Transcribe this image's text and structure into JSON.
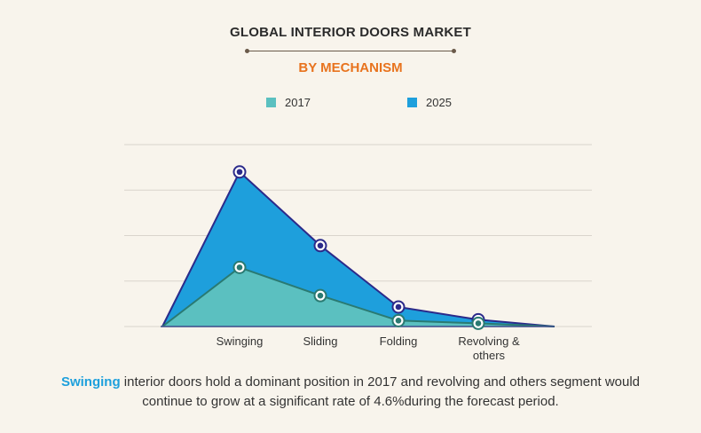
{
  "title": "GLOBAL INTERIOR DOORS MARKET",
  "subtitle": "BY MECHANISM",
  "colors": {
    "subtitle": "#e8731e",
    "series_2017_fill": "#5bc0c0",
    "series_2017_line": "#2a7a72",
    "series_2025_fill": "#1e9fdc",
    "series_2025_line": "#2b2a8a",
    "grid": "#d9d4cc",
    "highlight": "#1ea0dc"
  },
  "chart_data": {
    "type": "area",
    "categories": [
      "Swinging",
      "Sliding",
      "Folding",
      "Revolving & others"
    ],
    "series": [
      {
        "name": "2017",
        "values": [
          1.3,
          0.68,
          0.13,
          0.07
        ]
      },
      {
        "name": "2025",
        "values": [
          3.4,
          1.78,
          0.43,
          0.15
        ]
      }
    ],
    "ylim": [
      0,
      4
    ],
    "grid": true,
    "legend": "top"
  },
  "caption": {
    "highlight": "Swinging",
    "text": " interior doors  hold a dominant position in 2017 and revolving and others segment would continue to grow at a significant rate of 4.6%during the forecast period."
  }
}
